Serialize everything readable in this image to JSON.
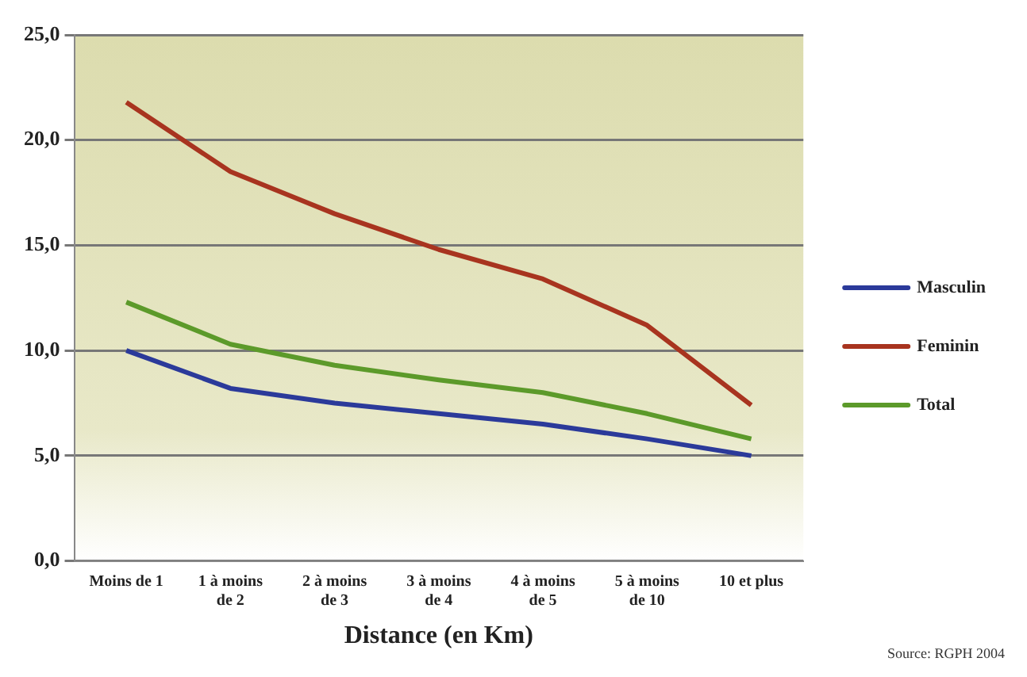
{
  "chart_data": {
    "type": "line",
    "xlabel": "Distance (en Km)",
    "categories": [
      "Moins de 1",
      "1 à moins de 2",
      "2 à moins de 3",
      "3 à moins de 4",
      "4 à moins de 5",
      "5 à moins de 10",
      "10 et plus"
    ],
    "series": [
      {
        "name": "Masculin",
        "color": "#2b3a9a",
        "values": [
          10.0,
          8.2,
          7.5,
          7.0,
          6.5,
          5.8,
          5.0
        ]
      },
      {
        "name": "Feminin",
        "color": "#a8341f",
        "values": [
          21.8,
          18.5,
          16.5,
          14.8,
          13.4,
          11.2,
          7.4
        ]
      },
      {
        "name": "Total",
        "color": "#5c9a2a",
        "values": [
          12.3,
          10.3,
          9.3,
          8.6,
          8.0,
          7.0,
          5.8
        ]
      }
    ],
    "ylim": [
      0,
      25
    ],
    "yticks": [
      {
        "value": 0,
        "label": "0,0"
      },
      {
        "value": 5,
        "label": "5,0"
      },
      {
        "value": 10,
        "label": "10,0"
      },
      {
        "value": 15,
        "label": "15,0"
      },
      {
        "value": 20,
        "label": "20,0"
      },
      {
        "value": 25,
        "label": "25,0"
      }
    ],
    "grid": "y",
    "legend": "right",
    "marker": "none",
    "line_style": "solid",
    "annotations": [
      "Source: RGPH 2004"
    ]
  }
}
